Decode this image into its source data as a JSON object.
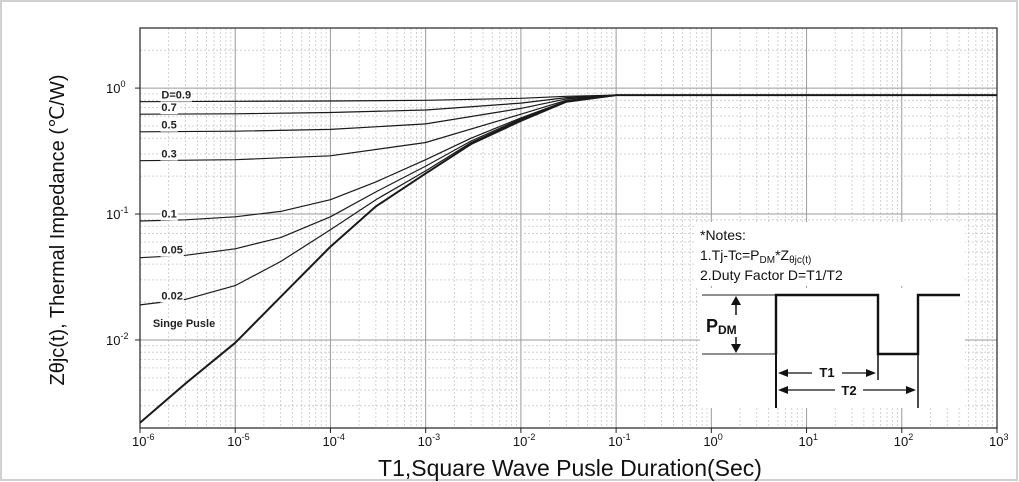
{
  "chart_data": {
    "type": "line",
    "xscale": "log",
    "yscale": "log",
    "xlim": [
      1e-06,
      1000
    ],
    "ylim": [
      0.002,
      3
    ],
    "grid": true,
    "xlabel": "T1,Square Wave Pusle Duration(Sec)",
    "ylabel": "Zθjc(t), Thermal Impedance (℃/W)",
    "x_ticks": [
      {
        "base": "10",
        "exp": "-6",
        "value": 1e-06
      },
      {
        "base": "10",
        "exp": "-5",
        "value": 1e-05
      },
      {
        "base": "10",
        "exp": "-4",
        "value": 0.0001
      },
      {
        "base": "10",
        "exp": "-3",
        "value": 0.001
      },
      {
        "base": "10",
        "exp": "-2",
        "value": 0.01
      },
      {
        "base": "10",
        "exp": "-1",
        "value": 0.1
      },
      {
        "base": "10",
        "exp": "0",
        "value": 1
      },
      {
        "base": "10",
        "exp": "1",
        "value": 10
      },
      {
        "base": "10",
        "exp": "2",
        "value": 100
      },
      {
        "base": "10",
        "exp": "3",
        "value": 1000
      }
    ],
    "y_ticks": [
      {
        "base": "10",
        "exp": "0",
        "value": 1
      },
      {
        "base": "10",
        "exp": "-1",
        "value": 0.1
      },
      {
        "base": "10",
        "exp": "-2",
        "value": 0.01
      }
    ],
    "series": [
      {
        "name": "D=0.9",
        "values": [
          [
            1e-06,
            0.78
          ],
          [
            1e-05,
            0.785
          ],
          [
            0.0001,
            0.79
          ],
          [
            0.001,
            0.8
          ],
          [
            0.01,
            0.83
          ],
          [
            0.03,
            0.86
          ],
          [
            0.1,
            0.88
          ],
          [
            1,
            0.88
          ],
          [
            1000,
            0.88
          ]
        ]
      },
      {
        "name": "0.7",
        "values": [
          [
            1e-06,
            0.62
          ],
          [
            1e-05,
            0.625
          ],
          [
            0.0001,
            0.64
          ],
          [
            0.001,
            0.67
          ],
          [
            0.01,
            0.76
          ],
          [
            0.03,
            0.84
          ],
          [
            0.1,
            0.88
          ],
          [
            1,
            0.88
          ],
          [
            1000,
            0.88
          ]
        ]
      },
      {
        "name": "0.5",
        "values": [
          [
            1e-06,
            0.45
          ],
          [
            1e-05,
            0.455
          ],
          [
            0.0001,
            0.47
          ],
          [
            0.001,
            0.52
          ],
          [
            0.01,
            0.69
          ],
          [
            0.03,
            0.82
          ],
          [
            0.1,
            0.88
          ],
          [
            1,
            0.88
          ],
          [
            1000,
            0.88
          ]
        ]
      },
      {
        "name": "0.3",
        "values": [
          [
            1e-06,
            0.265
          ],
          [
            1e-05,
            0.27
          ],
          [
            0.0001,
            0.29
          ],
          [
            0.001,
            0.37
          ],
          [
            0.01,
            0.62
          ],
          [
            0.03,
            0.8
          ],
          [
            0.1,
            0.88
          ],
          [
            1,
            0.88
          ],
          [
            1000,
            0.88
          ]
        ]
      },
      {
        "name": "0.1",
        "values": [
          [
            1e-06,
            0.088
          ],
          [
            3e-06,
            0.09
          ],
          [
            1e-05,
            0.095
          ],
          [
            3e-05,
            0.105
          ],
          [
            0.0001,
            0.13
          ],
          [
            0.0003,
            0.18
          ],
          [
            0.001,
            0.27
          ],
          [
            0.003,
            0.4
          ],
          [
            0.01,
            0.58
          ],
          [
            0.03,
            0.79
          ],
          [
            0.1,
            0.88
          ],
          [
            1,
            0.88
          ],
          [
            1000,
            0.88
          ]
        ]
      },
      {
        "name": "0.05",
        "values": [
          [
            1e-06,
            0.045
          ],
          [
            3e-06,
            0.047
          ],
          [
            1e-05,
            0.053
          ],
          [
            3e-05,
            0.065
          ],
          [
            0.0001,
            0.095
          ],
          [
            0.0003,
            0.15
          ],
          [
            0.001,
            0.24
          ],
          [
            0.003,
            0.38
          ],
          [
            0.01,
            0.57
          ],
          [
            0.03,
            0.78
          ],
          [
            0.1,
            0.88
          ],
          [
            1,
            0.88
          ],
          [
            1000,
            0.88
          ]
        ]
      },
      {
        "name": "0.02",
        "values": [
          [
            1e-06,
            0.019
          ],
          [
            3e-06,
            0.021
          ],
          [
            1e-05,
            0.027
          ],
          [
            3e-05,
            0.042
          ],
          [
            0.0001,
            0.075
          ],
          [
            0.0003,
            0.13
          ],
          [
            0.001,
            0.22
          ],
          [
            0.003,
            0.37
          ],
          [
            0.01,
            0.56
          ],
          [
            0.03,
            0.78
          ],
          [
            0.1,
            0.88
          ],
          [
            1,
            0.88
          ],
          [
            1000,
            0.88
          ]
        ]
      },
      {
        "name": "Singe Pusle",
        "values": [
          [
            1e-06,
            0.0022
          ],
          [
            3e-06,
            0.0045
          ],
          [
            1e-05,
            0.0095
          ],
          [
            3e-05,
            0.022
          ],
          [
            0.0001,
            0.055
          ],
          [
            0.0003,
            0.115
          ],
          [
            0.001,
            0.21
          ],
          [
            0.003,
            0.36
          ],
          [
            0.01,
            0.55
          ],
          [
            0.03,
            0.78
          ],
          [
            0.1,
            0.88
          ],
          [
            1,
            0.88
          ],
          [
            1000,
            0.88
          ]
        ]
      }
    ],
    "label_positions_x": {
      "D=0.9": 1.6e-06,
      "0.7": 1.6e-06,
      "0.5": 1.6e-06,
      "0.3": 1.6e-06,
      "0.1": 1.6e-06,
      "0.05": 1.6e-06,
      "0.02": 1.6e-06,
      "Singe Pusle": 1.3e-06
    }
  },
  "notes": {
    "title": "*Notes:",
    "line1_prefix": "1.Tj-Tc=P",
    "line1_sub": "DM",
    "line1_mid": "*Z",
    "line1_sub2": "θjc(t)",
    "line2": "2.Duty Factor D=T1/T2"
  },
  "pulse_diagram": {
    "pdm_main": "P",
    "pdm_sub": "DM",
    "t1": "T1",
    "t2": "T2"
  },
  "colors": {
    "curve": "#1a1a1a",
    "grid_major": "#9a9a9a",
    "grid_minor": "#c8c8c8",
    "frame": "#d0d0d0"
  }
}
